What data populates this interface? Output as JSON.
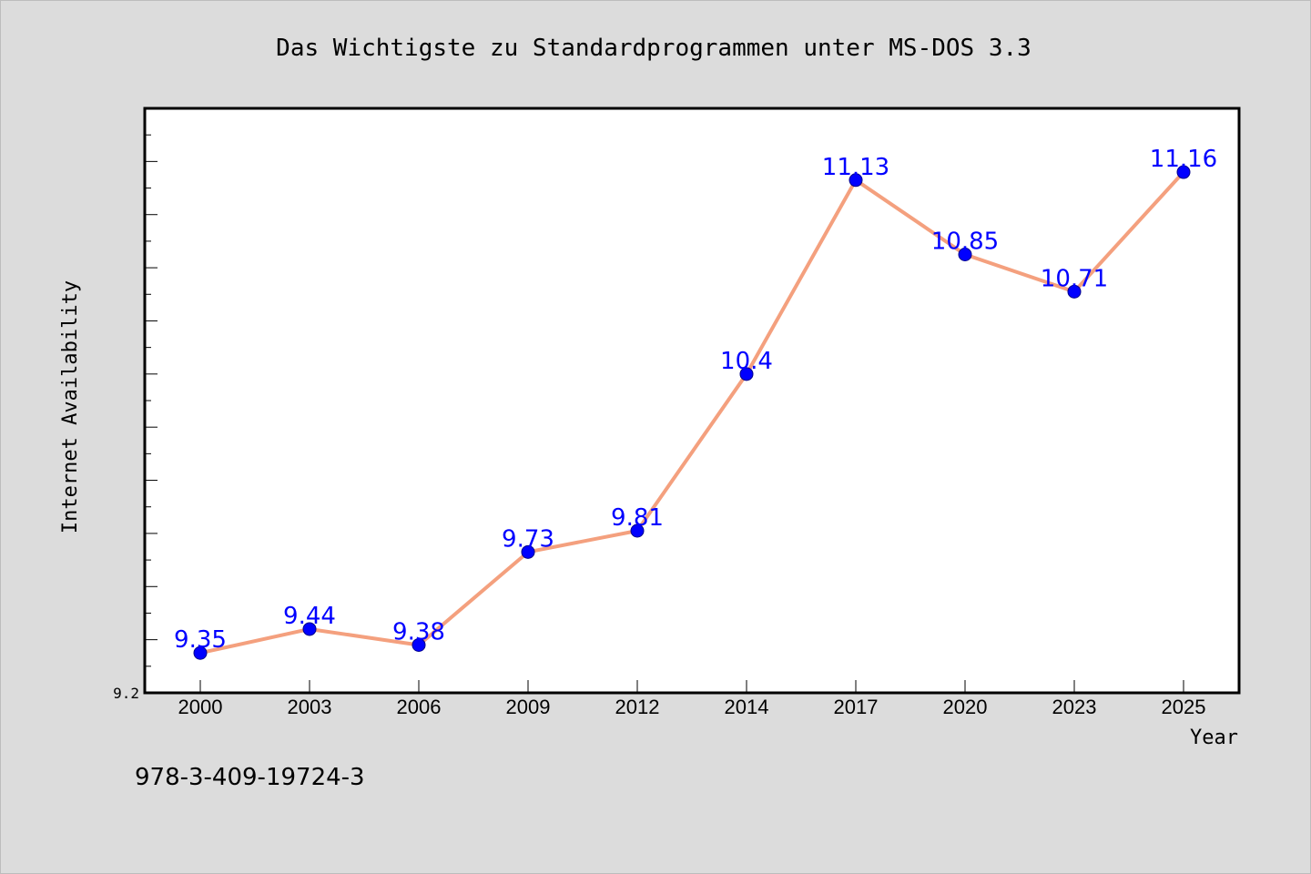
{
  "chart_data": {
    "type": "line",
    "title": "Das Wichtigste zu Standardprogrammen unter MS-DOS 3.3",
    "xlabel": "Year",
    "ylabel": "Internet Availability",
    "categories": [
      "2000",
      "2003",
      "2006",
      "2009",
      "2012",
      "2014",
      "2017",
      "2020",
      "2023",
      "2025"
    ],
    "series": [
      {
        "values": [
          9.35,
          9.44,
          9.38,
          9.73,
          9.81,
          10.4,
          11.13,
          10.85,
          10.71,
          11.16
        ],
        "data_labels": [
          "9.35",
          "9.44",
          "9.38",
          "9.73",
          "9.81",
          "10.4",
          "11.13",
          "10.85",
          "10.71",
          "11.16"
        ],
        "line_color": "#f4a07e",
        "marker_color": "#0000ff"
      }
    ],
    "ylim": [
      9.2,
      11.4
    ],
    "y_tick_labels": [
      "9.2"
    ],
    "grid": false,
    "legend": "none"
  },
  "footer": {
    "isbn": "978-3-409-19724-3"
  },
  "colors": {
    "background": "#dcdcdc",
    "plot_background": "#ffffff",
    "data_label": "#0000ff"
  }
}
